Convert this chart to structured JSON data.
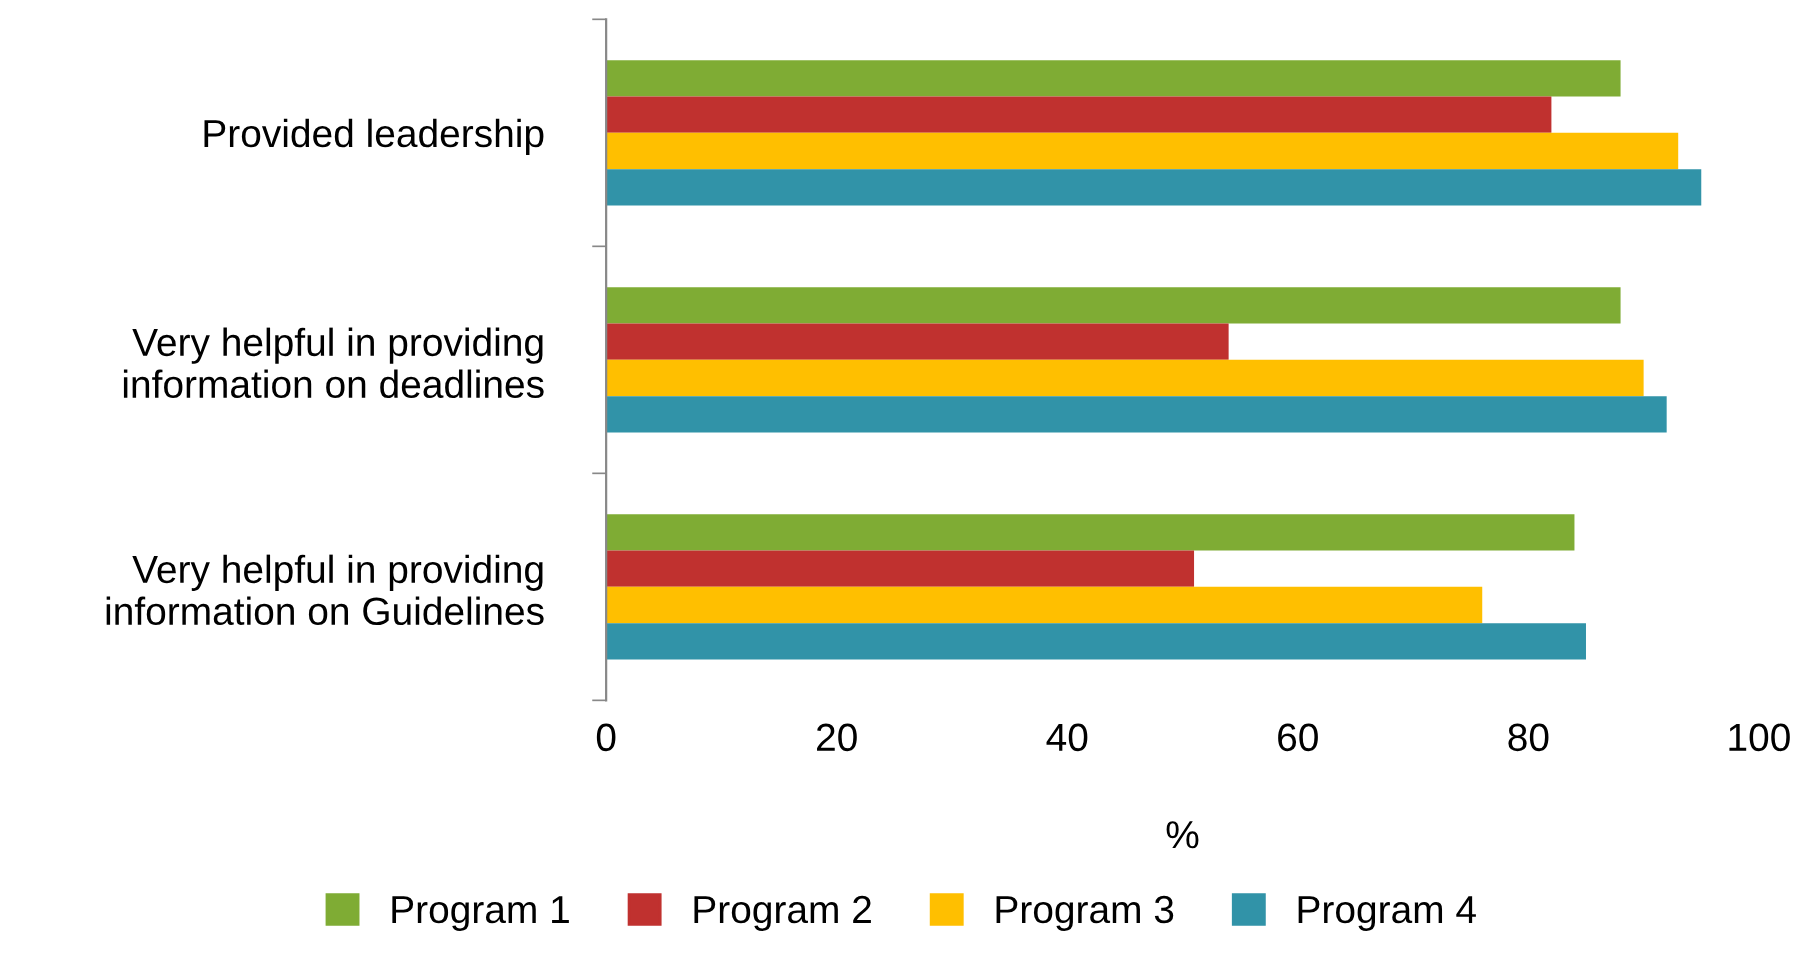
{
  "chart_data": {
    "type": "bar",
    "orientation": "horizontal",
    "xlabel": "%",
    "categories": [
      "Provided leadership",
      "Very helpful in providing\ninformation on deadlines",
      "Very helpful in providing\ninformation on Guidelines"
    ],
    "series": [
      {
        "name": "Program 1",
        "color": "#7fac34",
        "values": [
          88,
          88,
          84
        ]
      },
      {
        "name": "Program 2",
        "color": "#c0312f",
        "values": [
          82,
          54,
          51
        ]
      },
      {
        "name": "Program 3",
        "color": "#ffbf00",
        "values": [
          93,
          90,
          76
        ]
      },
      {
        "name": "Program 4",
        "color": "#3193a8",
        "values": [
          95,
          92,
          85
        ]
      }
    ],
    "xlim": [
      0,
      100
    ],
    "xticks": [
      0,
      20,
      40,
      60,
      80,
      100
    ],
    "grid": false,
    "legend": "bottom"
  }
}
